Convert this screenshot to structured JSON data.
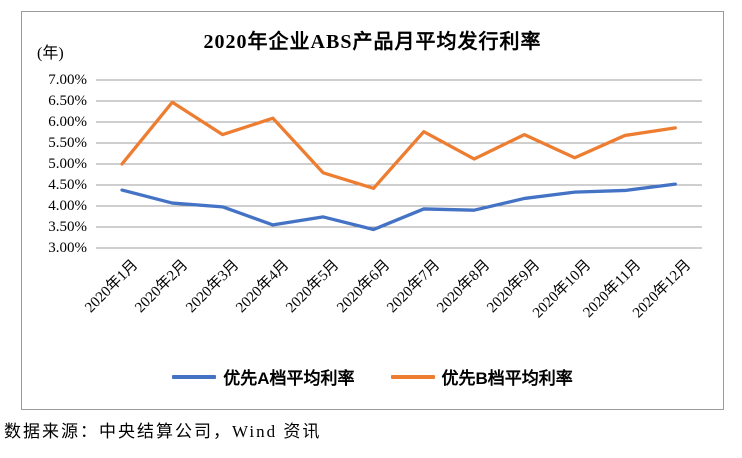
{
  "chart": {
    "title": "2020年企业ABS产品月平均发行利率",
    "unit_label": "(年)",
    "source": "数据来源：中央结算公司，Wind 资讯"
  },
  "axes": {
    "y_ticks": [
      "7.00%",
      "6.50%",
      "6.00%",
      "5.50%",
      "5.00%",
      "4.50%",
      "4.00%",
      "3.50%",
      "3.00%"
    ]
  },
  "colors": {
    "series_a": "#4472C4",
    "series_b": "#ED7D31",
    "gridline": "#9f9f9f",
    "frame_border": "#9b9b9b"
  },
  "chart_data": {
    "type": "line",
    "title": "2020年企业ABS产品月平均发行利率",
    "categories": [
      "2020年1月",
      "2020年2月",
      "2020年3月",
      "2020年4月",
      "2020年5月",
      "2020年6月",
      "2020年7月",
      "2020年8月",
      "2020年9月",
      "2020年10月",
      "2020年11月",
      "2020年12月"
    ],
    "series": [
      {
        "name": "优先A档平均利率",
        "color": "#4472C4",
        "values": [
          4.38,
          4.07,
          3.98,
          3.55,
          3.74,
          3.44,
          3.93,
          3.9,
          4.18,
          4.33,
          4.37,
          4.52
        ]
      },
      {
        "name": "优先B档平均利率",
        "color": "#ED7D31",
        "values": [
          5.0,
          6.47,
          5.7,
          6.09,
          4.79,
          4.42,
          5.77,
          5.12,
          5.7,
          5.15,
          5.68,
          5.86
        ]
      }
    ],
    "xlabel": "",
    "ylabel": "(年)",
    "ylim": [
      3.0,
      7.0
    ],
    "ytick_step": 0.5,
    "ytick_format": "0.00%",
    "grid": "horizontal",
    "legend_position": "bottom"
  }
}
